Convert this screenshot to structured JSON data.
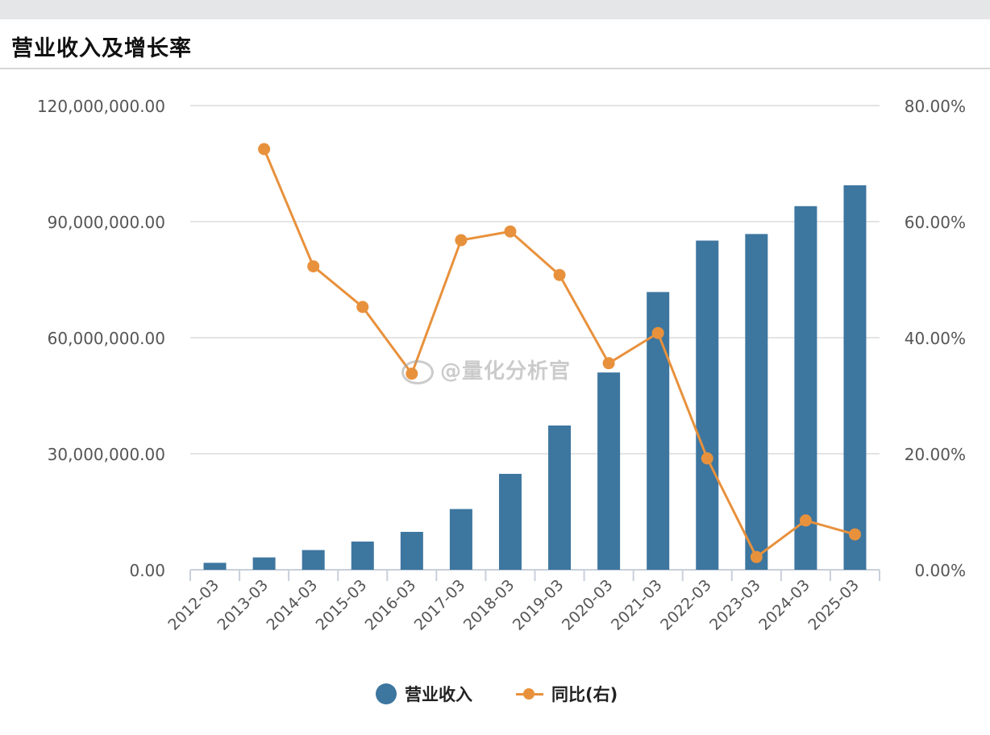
{
  "title": "营业收入及增长率",
  "watermark": "@量化分析官",
  "legend": {
    "bar_label": "营业收入",
    "line_label": "同比(右)"
  },
  "colors": {
    "bar": "#3d769f",
    "line": "#e8913c",
    "grid": "#dcdcdc",
    "axis_text": "#555555"
  },
  "chart_data": {
    "type": "bar",
    "categories": [
      "2012-03",
      "2013-03",
      "2014-03",
      "2015-03",
      "2016-03",
      "2017-03",
      "2018-03",
      "2019-03",
      "2020-03",
      "2021-03",
      "2022-03",
      "2023-03",
      "2024-03",
      "2025-03"
    ],
    "series": [
      {
        "name": "营业收入",
        "type": "bar",
        "axis": "left",
        "values": [
          1800000,
          3200000,
          5100000,
          7300000,
          9800000,
          15700000,
          24800000,
          37300000,
          51000000,
          71800000,
          85100000,
          86800000,
          94000000,
          99400000
        ]
      },
      {
        "name": "同比(右)",
        "type": "line",
        "axis": "right",
        "values": [
          null,
          72.5,
          52.3,
          45.3,
          33.8,
          56.8,
          58.3,
          50.8,
          35.6,
          40.8,
          19.2,
          2.2,
          8.5,
          6.1
        ]
      }
    ],
    "y_left": {
      "ylim": [
        0,
        120000000
      ],
      "ticks": [
        0,
        30000000,
        60000000,
        90000000,
        120000000
      ],
      "tick_labels": [
        "0.00",
        "30,000,000.00",
        "60,000,000.00",
        "90,000,000.00",
        "120,000,000.00"
      ]
    },
    "y_right": {
      "ylim": [
        0,
        80
      ],
      "ticks": [
        0,
        20,
        40,
        60,
        80
      ],
      "tick_labels": [
        "0.00%",
        "20.00%",
        "40.00%",
        "60.00%",
        "80.00%"
      ]
    },
    "grid": true,
    "legend_position": "bottom-center"
  }
}
